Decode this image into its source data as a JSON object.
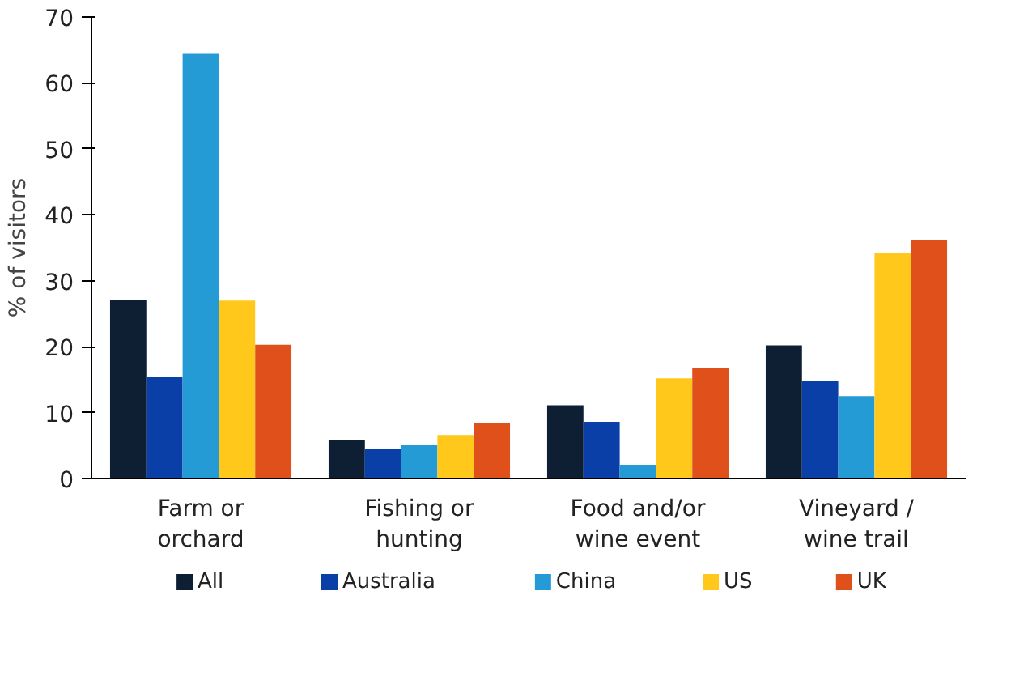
{
  "chart_data": {
    "type": "bar",
    "ylabel": "% of visitors",
    "categories": [
      "Farm or orchard",
      "Fishing or hunting",
      "Food and/or wine event",
      "Vineyard / wine trail"
    ],
    "series": [
      {
        "name": "All",
        "color": "#0f1f33",
        "values": [
          27.1,
          5.9,
          11.1,
          20.2
        ]
      },
      {
        "name": "Australia",
        "color": "#0a3fa8",
        "values": [
          15.4,
          4.5,
          8.6,
          14.8
        ]
      },
      {
        "name": "China",
        "color": "#259bd6",
        "values": [
          64.4,
          5.1,
          2.1,
          12.5
        ]
      },
      {
        "name": "US",
        "color": "#ffc81a",
        "values": [
          27,
          6.6,
          15.2,
          34.2
        ]
      },
      {
        "name": "UK",
        "color": "#e0501a",
        "values": [
          20.3,
          8.4,
          16.7,
          36.1
        ]
      }
    ],
    "ylim": [
      0,
      70
    ],
    "yticks": [
      0,
      10,
      20,
      30,
      40,
      50,
      60,
      70
    ],
    "grid": false,
    "legend": "bottom"
  }
}
